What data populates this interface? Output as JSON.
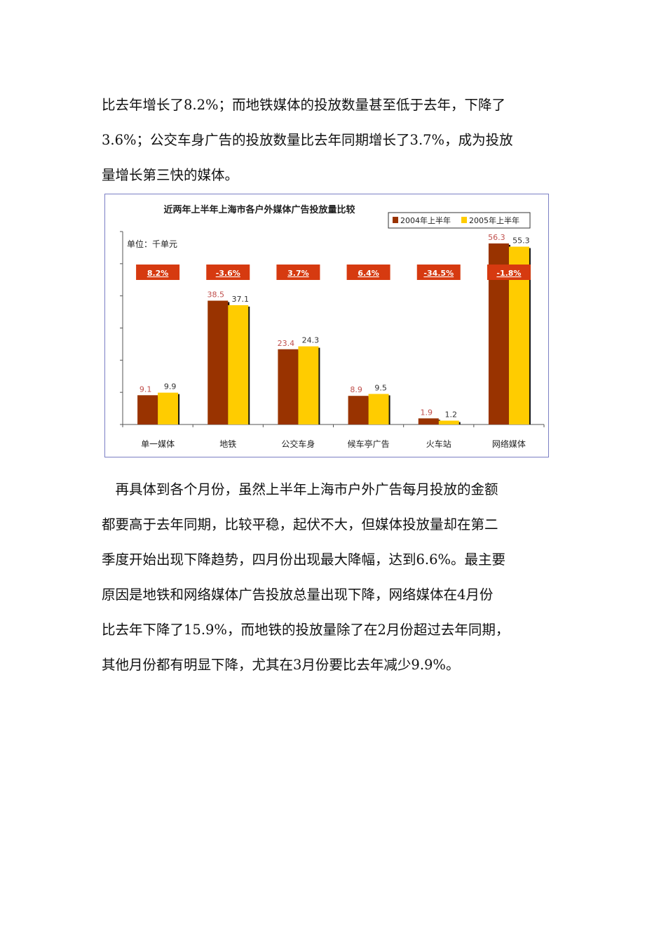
{
  "paragraph1": {
    "lines": [
      "比去年增长了8.2%；而地铁媒体的投放数量甚至低于去年，下降了",
      "3.6%；公交车身广告的投放数量比去年同期增长了3.7%，成为投放",
      "量增长第三快的媒体。"
    ]
  },
  "paragraph2": {
    "lines": [
      "　再具体到各个月份，虽然上半年上海市户外广告每月投放的金额",
      "都要高于去年同期，比较平稳，起伏不大，但媒体投放量却在第二",
      "季度开始出现下降趋势，四月份出现最大降幅，达到6.6%。最主要",
      "原因是地铁和网络媒体广告投放总量出现下降，网络媒体在4月份",
      "比去年下降了15.9%，而地铁的投放量除了在2月份超过去年同期，",
      "其他月份都有明显下降，尤其在3月份要比去年减少9.9%。"
    ]
  },
  "chart_data": {
    "type": "bar",
    "title": "近两年上半年上海市各户外媒体广告投放量比较",
    "unit_label": "单位：千单元",
    "categories": [
      "单一媒体",
      "地铁",
      "公交车身",
      "候车亭广告",
      "火车站",
      "网络媒体"
    ],
    "series": [
      {
        "name": "2004年上半年",
        "color": "#993300",
        "values": [
          9.1,
          38.5,
          23.4,
          8.9,
          1.9,
          56.3
        ]
      },
      {
        "name": "2005年上半年",
        "color": "#ffcc00",
        "values": [
          9.9,
          37.1,
          24.3,
          9.5,
          1.2,
          55.3
        ]
      }
    ],
    "growth_labels": [
      "8.2%",
      "-3.6%",
      "3.7%",
      "6.4%",
      "-34.5%",
      "-1.8%"
    ],
    "growth_badge_color": "#d63a10",
    "ylim": [
      0,
      60
    ],
    "ytick_step": 10,
    "ytick_labels_shown": false,
    "legend_position": "top-right",
    "grid": false
  }
}
